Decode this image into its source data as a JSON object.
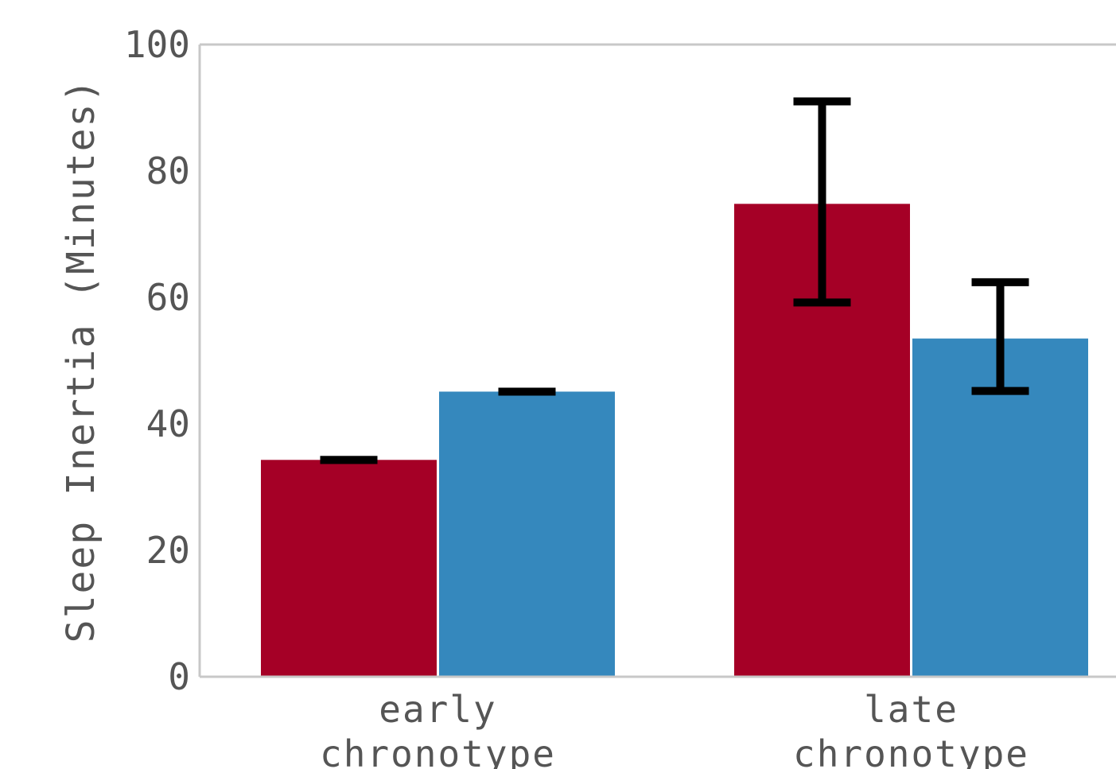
{
  "chart_data": {
    "type": "bar",
    "title": "",
    "xlabel": "",
    "ylabel": "Sleep Inertia (Minutes)",
    "categories": [
      [
        "early",
        "chronotype"
      ],
      [
        "late",
        "chronotype"
      ]
    ],
    "ylim": [
      0,
      100
    ],
    "yticks": [
      0,
      20,
      40,
      60,
      80,
      100
    ],
    "grid": false,
    "legend": "none",
    "series": [
      {
        "color": "#A50026",
        "values": [
          34.3,
          74.8
        ],
        "error_low": [
          34.3,
          59.2
        ],
        "error_high": [
          34.3,
          91.0
        ]
      },
      {
        "color": "#3588BD",
        "values": [
          45.1,
          53.5
        ],
        "error_low": [
          45.1,
          45.2
        ],
        "error_high": [
          45.1,
          62.4
        ]
      }
    ],
    "axis_color": "#C8C8C8",
    "text_color": "#555555",
    "errorbar_color": "#000000"
  }
}
